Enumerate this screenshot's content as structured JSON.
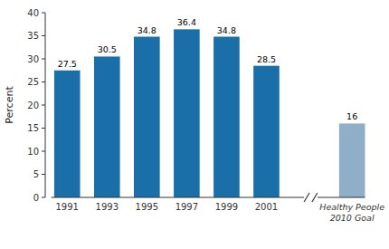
{
  "chart_data": {
    "type": "bar",
    "categories": [
      "1991",
      "1993",
      "1995",
      "1997",
      "1999",
      "2001",
      "Healthy People\n2010 Goal"
    ],
    "values": [
      27.5,
      30.5,
      34.8,
      36.4,
      34.8,
      28.5,
      16
    ],
    "colors": [
      "#1a6fa8",
      "#1a6fa8",
      "#1a6fa8",
      "#1a6fa8",
      "#1a6fa8",
      "#1a6fa8",
      "#8faec8"
    ],
    "ylabel": "Percent",
    "ylim": [
      0,
      40
    ],
    "yticks": [
      0,
      5,
      10,
      15,
      20,
      25,
      30,
      35,
      40
    ],
    "data_labels": true,
    "grid": false
  }
}
